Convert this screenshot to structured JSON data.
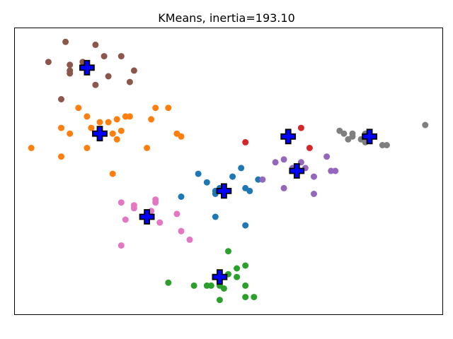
{
  "chart_data": {
    "type": "scatter",
    "title": "KMeans, inertia=193.10",
    "xlabel": "",
    "ylabel": "",
    "xlim": [
      0,
      100
    ],
    "ylim": [
      0,
      100
    ],
    "axis_ticks": "none",
    "grid": false,
    "series": [
      {
        "color": "#1f77b4",
        "points": [
          [
            43,
            49
          ],
          [
            45,
            46
          ],
          [
            51,
            48
          ],
          [
            53,
            51
          ],
          [
            48,
            44
          ],
          [
            47,
            43
          ],
          [
            47,
            42
          ],
          [
            39,
            41
          ],
          [
            54,
            44
          ],
          [
            55,
            43
          ],
          [
            57,
            47
          ],
          [
            47,
            34
          ],
          [
            54,
            31
          ]
        ]
      },
      {
        "color": "#ff7f0e",
        "points": [
          [
            15,
            72
          ],
          [
            17,
            69
          ],
          [
            20,
            67
          ],
          [
            20,
            62
          ],
          [
            18,
            65
          ],
          [
            22,
            67
          ],
          [
            24,
            68
          ],
          [
            27,
            69
          ],
          [
            23,
            63
          ],
          [
            25,
            64
          ],
          [
            26,
            69
          ],
          [
            32,
            68
          ],
          [
            11,
            65
          ],
          [
            13,
            63
          ],
          [
            4,
            58
          ],
          [
            11,
            55
          ],
          [
            17,
            58
          ],
          [
            24,
            61
          ],
          [
            33,
            72
          ],
          [
            36,
            72
          ],
          [
            38,
            63
          ],
          [
            39,
            62
          ],
          [
            31,
            58
          ],
          [
            23,
            49
          ]
        ]
      },
      {
        "color": "#2ca02c",
        "points": [
          [
            50,
            22
          ],
          [
            52,
            16
          ],
          [
            54,
            17
          ],
          [
            52,
            13
          ],
          [
            50,
            14
          ],
          [
            48,
            10
          ],
          [
            46,
            10
          ],
          [
            49,
            9
          ],
          [
            54,
            10
          ],
          [
            45,
            10
          ],
          [
            42,
            10
          ],
          [
            36,
            11
          ],
          [
            54,
            6
          ],
          [
            56,
            6
          ],
          [
            48,
            5
          ]
        ]
      },
      {
        "color": "#d62728",
        "points": [
          [
            67,
            65
          ],
          [
            69,
            58
          ],
          [
            54,
            60
          ]
        ]
      },
      {
        "color": "#9467bd",
        "points": [
          [
            61,
            53
          ],
          [
            63,
            54
          ],
          [
            65,
            51
          ],
          [
            68,
            51
          ],
          [
            70,
            48
          ],
          [
            73,
            55
          ],
          [
            74,
            50
          ],
          [
            75,
            50
          ],
          [
            70,
            42
          ],
          [
            63,
            44
          ],
          [
            58,
            47
          ],
          [
            67,
            53
          ]
        ]
      },
      {
        "color": "#8c564b",
        "points": [
          [
            12,
            95
          ],
          [
            19,
            94
          ],
          [
            8,
            88
          ],
          [
            13,
            87
          ],
          [
            13,
            85
          ],
          [
            16,
            88
          ],
          [
            21,
            90
          ],
          [
            25,
            90
          ],
          [
            28,
            85
          ],
          [
            13,
            84
          ],
          [
            22,
            83
          ],
          [
            27,
            81
          ],
          [
            19,
            80
          ],
          [
            11,
            75
          ]
        ]
      },
      {
        "color": "#e377c2",
        "points": [
          [
            25,
            39
          ],
          [
            28,
            38
          ],
          [
            28,
            37
          ],
          [
            33,
            40
          ],
          [
            33,
            39
          ],
          [
            32,
            36
          ],
          [
            34,
            32
          ],
          [
            38,
            35
          ],
          [
            39,
            29
          ],
          [
            41,
            26
          ],
          [
            26,
            33
          ],
          [
            25,
            24
          ]
        ]
      },
      {
        "color": "#7f7f7f",
        "points": [
          [
            76,
            64
          ],
          [
            77,
            63
          ],
          [
            79,
            63
          ],
          [
            79,
            62
          ],
          [
            78,
            61
          ],
          [
            82,
            63
          ],
          [
            81,
            61
          ],
          [
            82,
            60
          ],
          [
            86,
            59
          ],
          [
            87,
            59
          ],
          [
            96,
            66
          ]
        ]
      }
    ],
    "centroids": {
      "color": "#0000ff",
      "marker": "plus",
      "points": [
        [
          49,
          43
        ],
        [
          20,
          63
        ],
        [
          48,
          13
        ],
        [
          64,
          62
        ],
        [
          66,
          50
        ],
        [
          17,
          86
        ],
        [
          31,
          34
        ],
        [
          83,
          62
        ]
      ]
    }
  }
}
